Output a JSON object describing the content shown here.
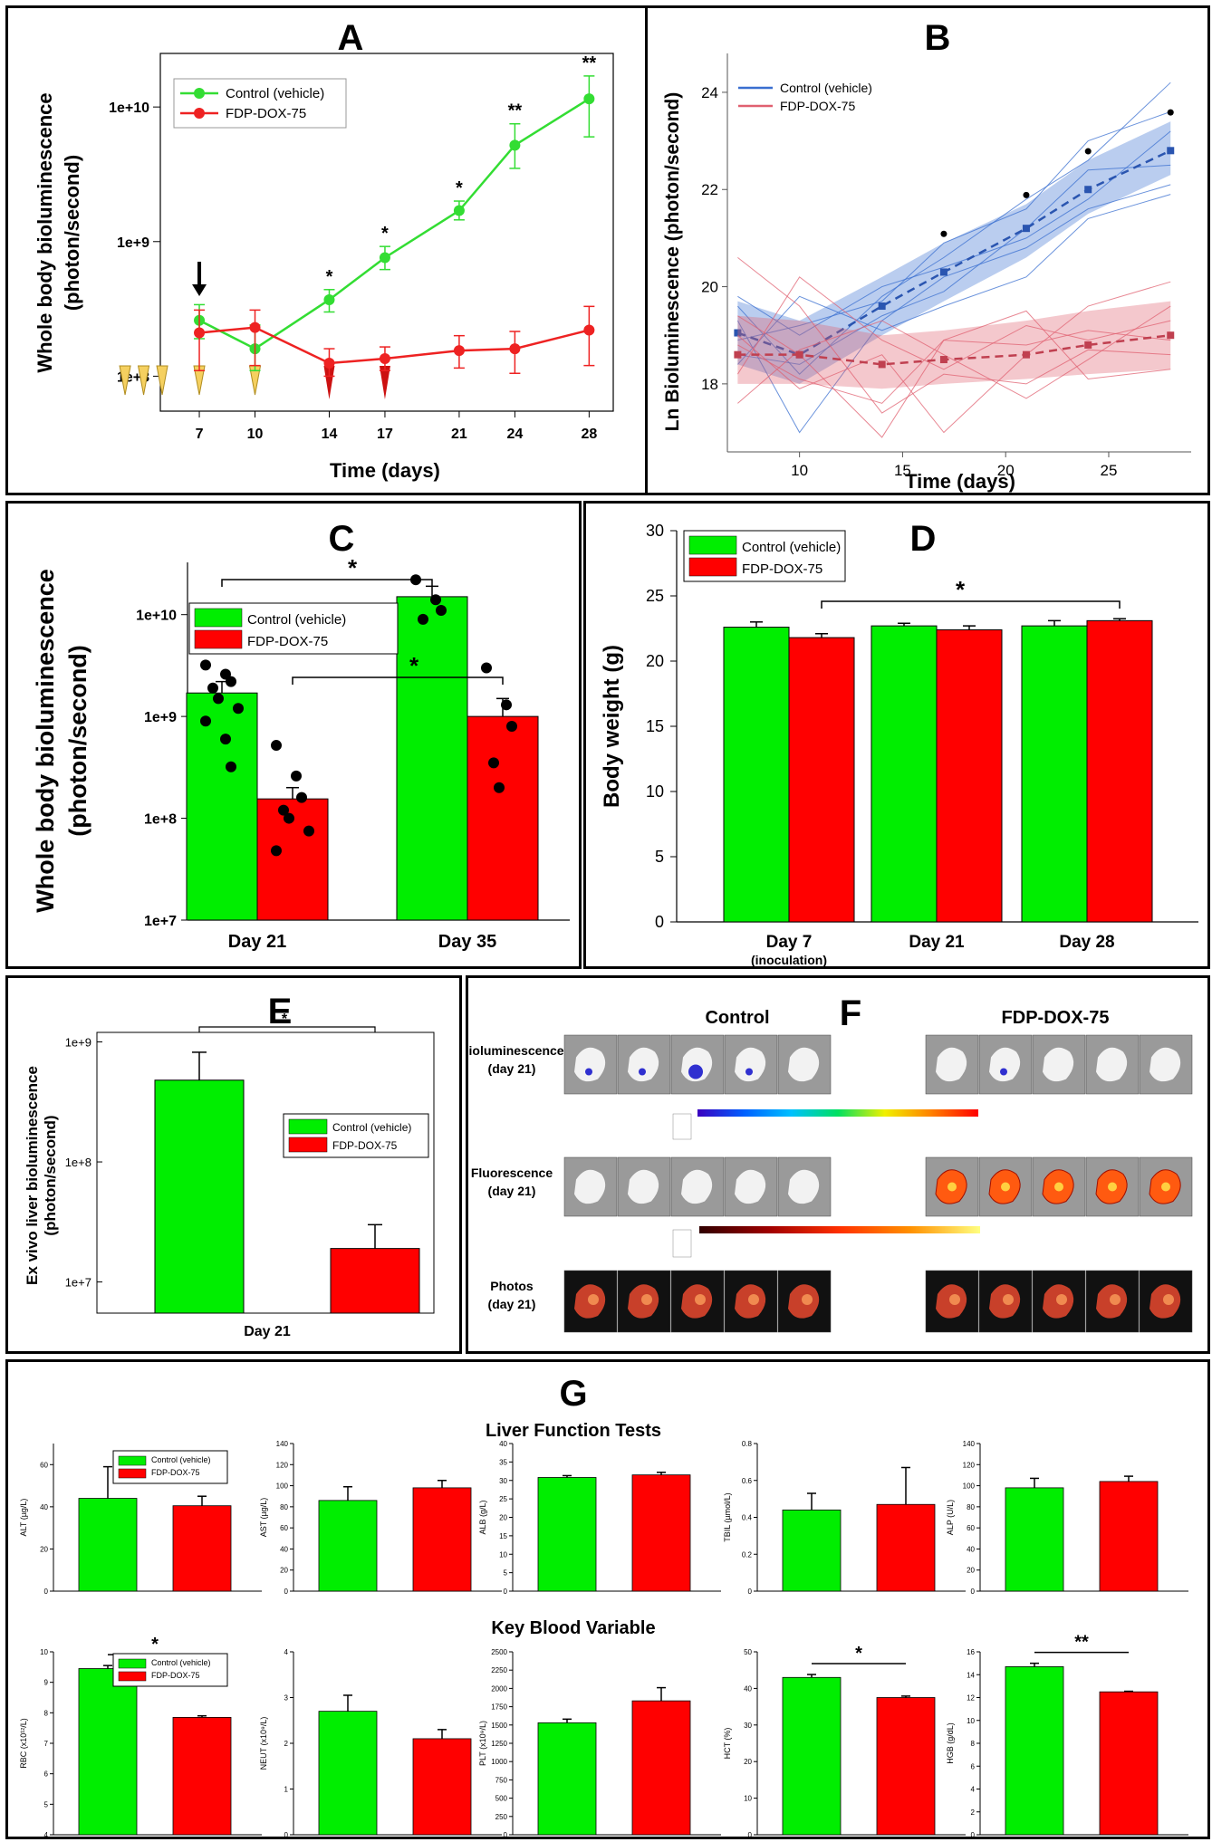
{
  "chart_data": [
    {
      "panel": "A",
      "type": "line",
      "title": "A",
      "xlabel": "Time (days)",
      "ylabel": "Whole body bioluminescence (photon/second)",
      "x": [
        7,
        10,
        14,
        17,
        21,
        24,
        28
      ],
      "x_ticks": [
        "7",
        "10",
        "14",
        "17",
        "21",
        "24",
        "28"
      ],
      "y_ticks": [
        "1e+8",
        "1e+9",
        "1e+10"
      ],
      "ylog": true,
      "ylim": [
        55000000,
        25000000000
      ],
      "colors": {
        "control": "#33dd33",
        "treated": "#ee2222"
      },
      "series": [
        {
          "name": "Control (vehicle)",
          "values": [
            260000000,
            160000000,
            370000000,
            760000000,
            1700000000,
            5200000000,
            11500000000
          ],
          "err_hi": [
            340000000,
            240000000,
            440000000,
            920000000,
            2000000000,
            7500000000,
            17000000000
          ],
          "err_lo": [
            190000000,
            110000000,
            300000000,
            620000000,
            1450000000,
            3500000000,
            6000000000
          ]
        },
        {
          "name": "FDP-DOX-75",
          "values": [
            210000000,
            230000000,
            125000000,
            135000000,
            155000000,
            160000000,
            220000000
          ],
          "err_hi": [
            310000000,
            310000000,
            160000000,
            165000000,
            200000000,
            215000000,
            330000000
          ],
          "err_lo": [
            110000000,
            120000000,
            100000000,
            110000000,
            115000000,
            105000000,
            120000000
          ]
        }
      ],
      "significance": [
        "",
        "",
        "*",
        "*",
        "*",
        "**",
        "**"
      ],
      "yellow_arrow_days": [
        3,
        4,
        5,
        7,
        10
      ],
      "red_arrow_days": [
        14,
        17
      ],
      "arrow_day": 7
    },
    {
      "panel": "B",
      "type": "line",
      "title": "B",
      "xlabel": "Time (days)",
      "ylabel": "Ln Bioluminescence (photon/second)",
      "x_ticks": [
        "10",
        "15",
        "20",
        "25"
      ],
      "y_ticks": [
        "18",
        "20",
        "22",
        "24"
      ],
      "xlim": [
        6.5,
        29
      ],
      "ylim": [
        16.6,
        24.8
      ],
      "colors": {
        "control": "#3a6fd0",
        "treated": "#e06070"
      },
      "series": [
        {
          "name": "Control (vehicle)",
          "x": [
            7,
            10,
            14,
            17,
            21,
            24,
            28
          ],
          "values": [
            19.05,
            18.6,
            19.6,
            20.3,
            21.2,
            22.0,
            22.8
          ],
          "band_hi": [
            19.7,
            19.3,
            20.2,
            20.9,
            21.7,
            22.6,
            23.4
          ],
          "band_lo": [
            18.4,
            18.0,
            19.0,
            19.7,
            20.6,
            21.5,
            22.3
          ]
        },
        {
          "name": "FDP-DOX-75",
          "x": [
            7,
            10,
            14,
            17,
            21,
            24,
            28
          ],
          "values": [
            18.6,
            18.6,
            18.4,
            18.5,
            18.6,
            18.8,
            19.0
          ],
          "band_hi": [
            19.4,
            19.3,
            19.0,
            19.1,
            19.3,
            19.5,
            19.7
          ],
          "band_lo": [
            18.0,
            18.0,
            17.9,
            18.0,
            18.1,
            18.2,
            18.3
          ]
        }
      ],
      "significance_x": [
        17,
        21,
        24,
        28
      ]
    },
    {
      "panel": "C",
      "type": "bar",
      "title": "C",
      "categories": [
        "Day 21",
        "Day 35"
      ],
      "ylabel": "Whole body bioluminescence (photon/second)",
      "y_ticks": [
        "1e+7",
        "1e+8",
        "1e+9",
        "1e+10"
      ],
      "ylog": true,
      "ylim": [
        10000000,
        40000000000
      ],
      "series": [
        {
          "name": "Control (vehicle)",
          "values": [
            1700000000,
            15000000000
          ],
          "err": [
            2200000000,
            19000000000
          ],
          "points": [
            [
              3200000000,
              2600000000,
              2200000000,
              1900000000,
              1500000000,
              1200000000,
              900000000,
              600000000,
              320000000
            ],
            [
              22000000000,
              14000000000,
              11000000000,
              9000000000
            ]
          ]
        },
        {
          "name": "FDP-DOX-75",
          "values": [
            155000000,
            1000000000
          ],
          "err": [
            200000000,
            1500000000
          ],
          "points": [
            [
              520000000,
              260000000,
              160000000,
              120000000,
              100000000,
              75000000,
              48000000
            ],
            [
              3000000000,
              1300000000,
              800000000,
              350000000,
              200000000
            ]
          ]
        }
      ],
      "significance": [
        "*",
        "*"
      ]
    },
    {
      "panel": "D",
      "type": "bar",
      "title": "D",
      "categories": [
        "Day 7",
        "Day 21",
        "Day 28"
      ],
      "category_notes": [
        "(inoculation)",
        "",
        ""
      ],
      "ylabel": "Body weight (g)",
      "y_ticks": [
        "0",
        "5",
        "10",
        "15",
        "20",
        "25",
        "30"
      ],
      "ylim": [
        0,
        30
      ],
      "series": [
        {
          "name": "Control (vehicle)",
          "values": [
            22.6,
            22.7,
            22.7
          ],
          "err": [
            0.4,
            0.2,
            0.4
          ]
        },
        {
          "name": "FDP-DOX-75",
          "values": [
            21.8,
            22.4,
            23.1
          ],
          "err": [
            0.3,
            0.3,
            0.15
          ]
        }
      ],
      "significance": "*"
    },
    {
      "panel": "E",
      "type": "bar",
      "title": "E",
      "categories": [
        "Day 21"
      ],
      "ylabel": "Ex vivo liver bioluminescence (photon/second)",
      "y_ticks": [
        "1e+7",
        "1e+8",
        "1e+9"
      ],
      "ylog": true,
      "ylim": [
        5500000,
        1200000000
      ],
      "series": [
        {
          "name": "Control (vehicle)",
          "values": [
            480000000
          ],
          "err": [
            820000000
          ]
        },
        {
          "name": "FDP-DOX-75",
          "values": [
            19000000
          ],
          "err": [
            30000000
          ]
        }
      ],
      "significance": "*"
    },
    {
      "panel": "G",
      "type": "bar",
      "title": "G",
      "section_titles": [
        "Liver Function Tests",
        "Key Blood Variable"
      ],
      "legend": [
        "Control (vehicle)",
        "FDP-DOX-75"
      ],
      "subplots": [
        {
          "ylabel": "ALT (µg/L)",
          "y_ticks": [
            "0",
            "20",
            "40",
            "60"
          ],
          "ylim": [
            0,
            70
          ],
          "values": [
            44,
            40.5
          ],
          "err": [
            59,
            45
          ],
          "sig": ""
        },
        {
          "ylabel": "AST (µg/L)",
          "y_ticks": [
            "0",
            "20",
            "40",
            "60",
            "80",
            "100",
            "120",
            "140"
          ],
          "ylim": [
            0,
            140
          ],
          "values": [
            86,
            98
          ],
          "err": [
            99,
            105
          ],
          "sig": ""
        },
        {
          "ylabel": "ALB (g/L)",
          "y_ticks": [
            "0",
            "5",
            "10",
            "15",
            "20",
            "25",
            "30",
            "35",
            "40"
          ],
          "ylim": [
            0,
            40
          ],
          "values": [
            30.8,
            31.5
          ],
          "err": [
            31.3,
            32.2
          ],
          "sig": ""
        },
        {
          "ylabel": "TBIL (µmol/L)",
          "y_ticks": [
            "0",
            "0.2",
            "0.4",
            "0.6",
            "0.8"
          ],
          "ylim": [
            0,
            0.8
          ],
          "values": [
            0.44,
            0.47
          ],
          "err": [
            0.53,
            0.67
          ],
          "sig": ""
        },
        {
          "ylabel": "ALP (U/L)",
          "y_ticks": [
            "0",
            "20",
            "40",
            "60",
            "80",
            "100",
            "120",
            "140"
          ],
          "ylim": [
            0,
            140
          ],
          "values": [
            98,
            104
          ],
          "err": [
            107,
            109
          ],
          "sig": ""
        },
        {
          "ylabel": "RBC (x10¹²/L)",
          "y_ticks": [
            "4",
            "5",
            "6",
            "7",
            "8",
            "9",
            "10"
          ],
          "ylim": [
            4,
            10
          ],
          "values": [
            9.45,
            7.85
          ],
          "err": [
            9.55,
            7.9
          ],
          "sig": "*"
        },
        {
          "ylabel": "NEUT (x10⁹/L)",
          "y_ticks": [
            "0",
            "1",
            "2",
            "3",
            "4"
          ],
          "ylim": [
            0,
            4
          ],
          "values": [
            2.7,
            2.1
          ],
          "err": [
            3.05,
            2.3
          ],
          "sig": ""
        },
        {
          "ylabel": "PLT (x10⁹/L)",
          "y_ticks": [
            "0",
            "250",
            "500",
            "750",
            "1000",
            "1250",
            "1500",
            "1750",
            "2000",
            "2250",
            "2500"
          ],
          "ylim": [
            0,
            2500
          ],
          "values": [
            1530,
            1830
          ],
          "err": [
            1580,
            2010
          ],
          "sig": ""
        },
        {
          "ylabel": "HCT (%)",
          "y_ticks": [
            "0",
            "10",
            "20",
            "30",
            "40",
            "50"
          ],
          "ylim": [
            0,
            50
          ],
          "values": [
            43,
            37.5
          ],
          "err": [
            43.8,
            37.9
          ],
          "sig": "*"
        },
        {
          "ylabel": "HGB (g/dL)",
          "y_ticks": [
            "0",
            "2",
            "4",
            "6",
            "8",
            "10",
            "12",
            "14",
            "16"
          ],
          "ylim": [
            0,
            16
          ],
          "values": [
            14.7,
            12.5
          ],
          "err": [
            15.0,
            12.55
          ],
          "sig": "**"
        }
      ]
    }
  ],
  "colors": {
    "green": "#00ee00",
    "red": "#ff0000",
    "dark": "#000000"
  },
  "panel_f": {
    "letter": "F",
    "group_labels": [
      "Control",
      "FDP-DOX-75"
    ],
    "row_labels": [
      [
        "Bioluminescence",
        "(day 21)"
      ],
      [
        "Fluorescence",
        "(day 21)"
      ],
      [
        "Photos",
        "(day 21)"
      ]
    ],
    "images_per_group": 5
  }
}
